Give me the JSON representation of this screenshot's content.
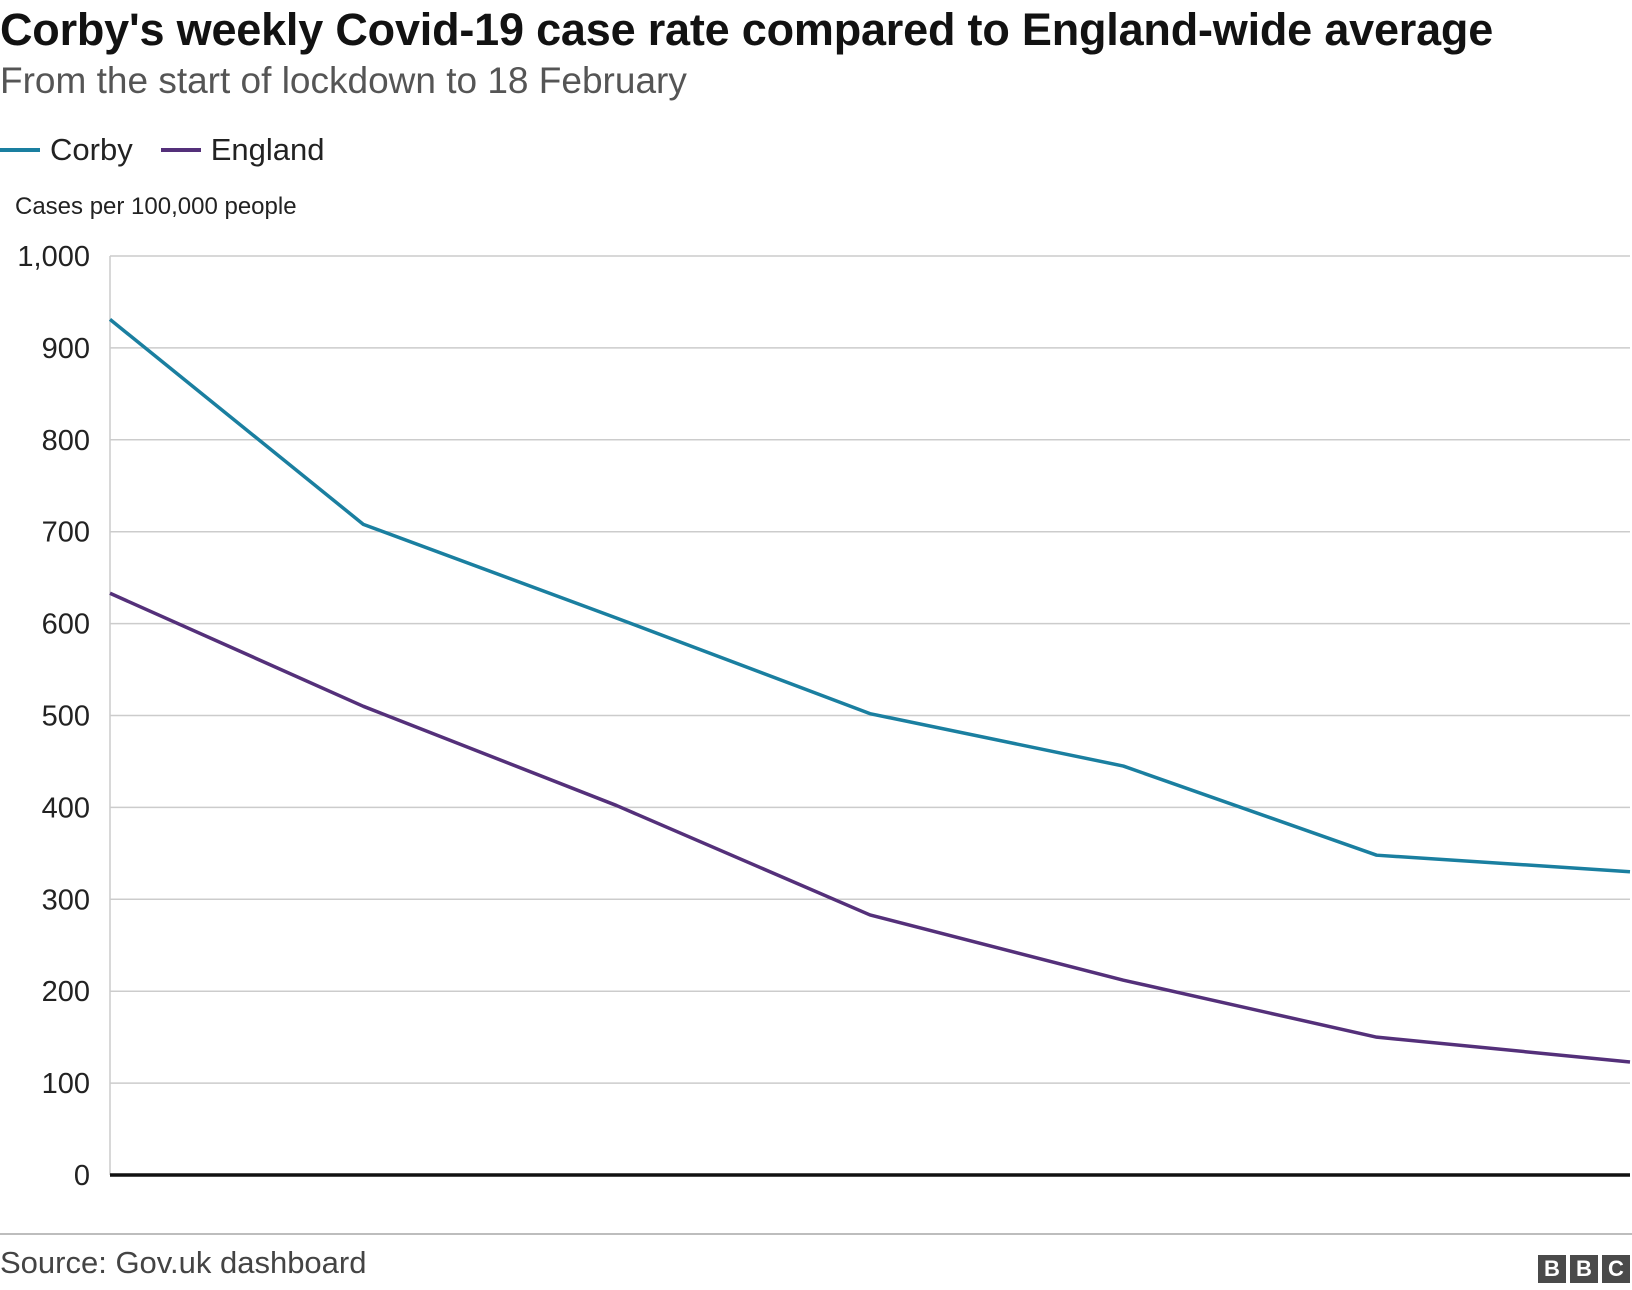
{
  "header": {
    "title": "Corby's weekly Covid-19 case rate compared to England-wide average",
    "subtitle": "From the start of lockdown to 18 February"
  },
  "legend": [
    {
      "label": "Corby",
      "color": "#1a7fa0"
    },
    {
      "label": "England",
      "color": "#54307a"
    }
  ],
  "footer": {
    "source": "Source: Gov.uk dashboard",
    "logo_letters": [
      "B",
      "B",
      "C"
    ]
  },
  "chart_data": {
    "type": "line",
    "title": "Corby's weekly Covid-19 case rate compared to England-wide average",
    "subtitle": "From the start of lockdown to 18 February",
    "ylabel": "Cases per 100,000 people",
    "xlabel": "",
    "ylim": [
      0,
      1000
    ],
    "yticks": [
      0,
      100,
      200,
      300,
      400,
      500,
      600,
      700,
      800,
      900,
      1000
    ],
    "ytick_labels": [
      "0",
      "100",
      "200",
      "300",
      "400",
      "500",
      "600",
      "700",
      "800",
      "900",
      "1,000"
    ],
    "x": [
      0,
      1,
      2,
      3,
      4,
      5,
      6
    ],
    "series": [
      {
        "name": "Corby",
        "color": "#1a7fa0",
        "values": [
          931,
          708,
          606,
          502,
          445,
          348,
          330
        ]
      },
      {
        "name": "England",
        "color": "#54307a",
        "values": [
          633,
          510,
          402,
          283,
          212,
          150,
          123
        ]
      }
    ],
    "grid": true
  }
}
